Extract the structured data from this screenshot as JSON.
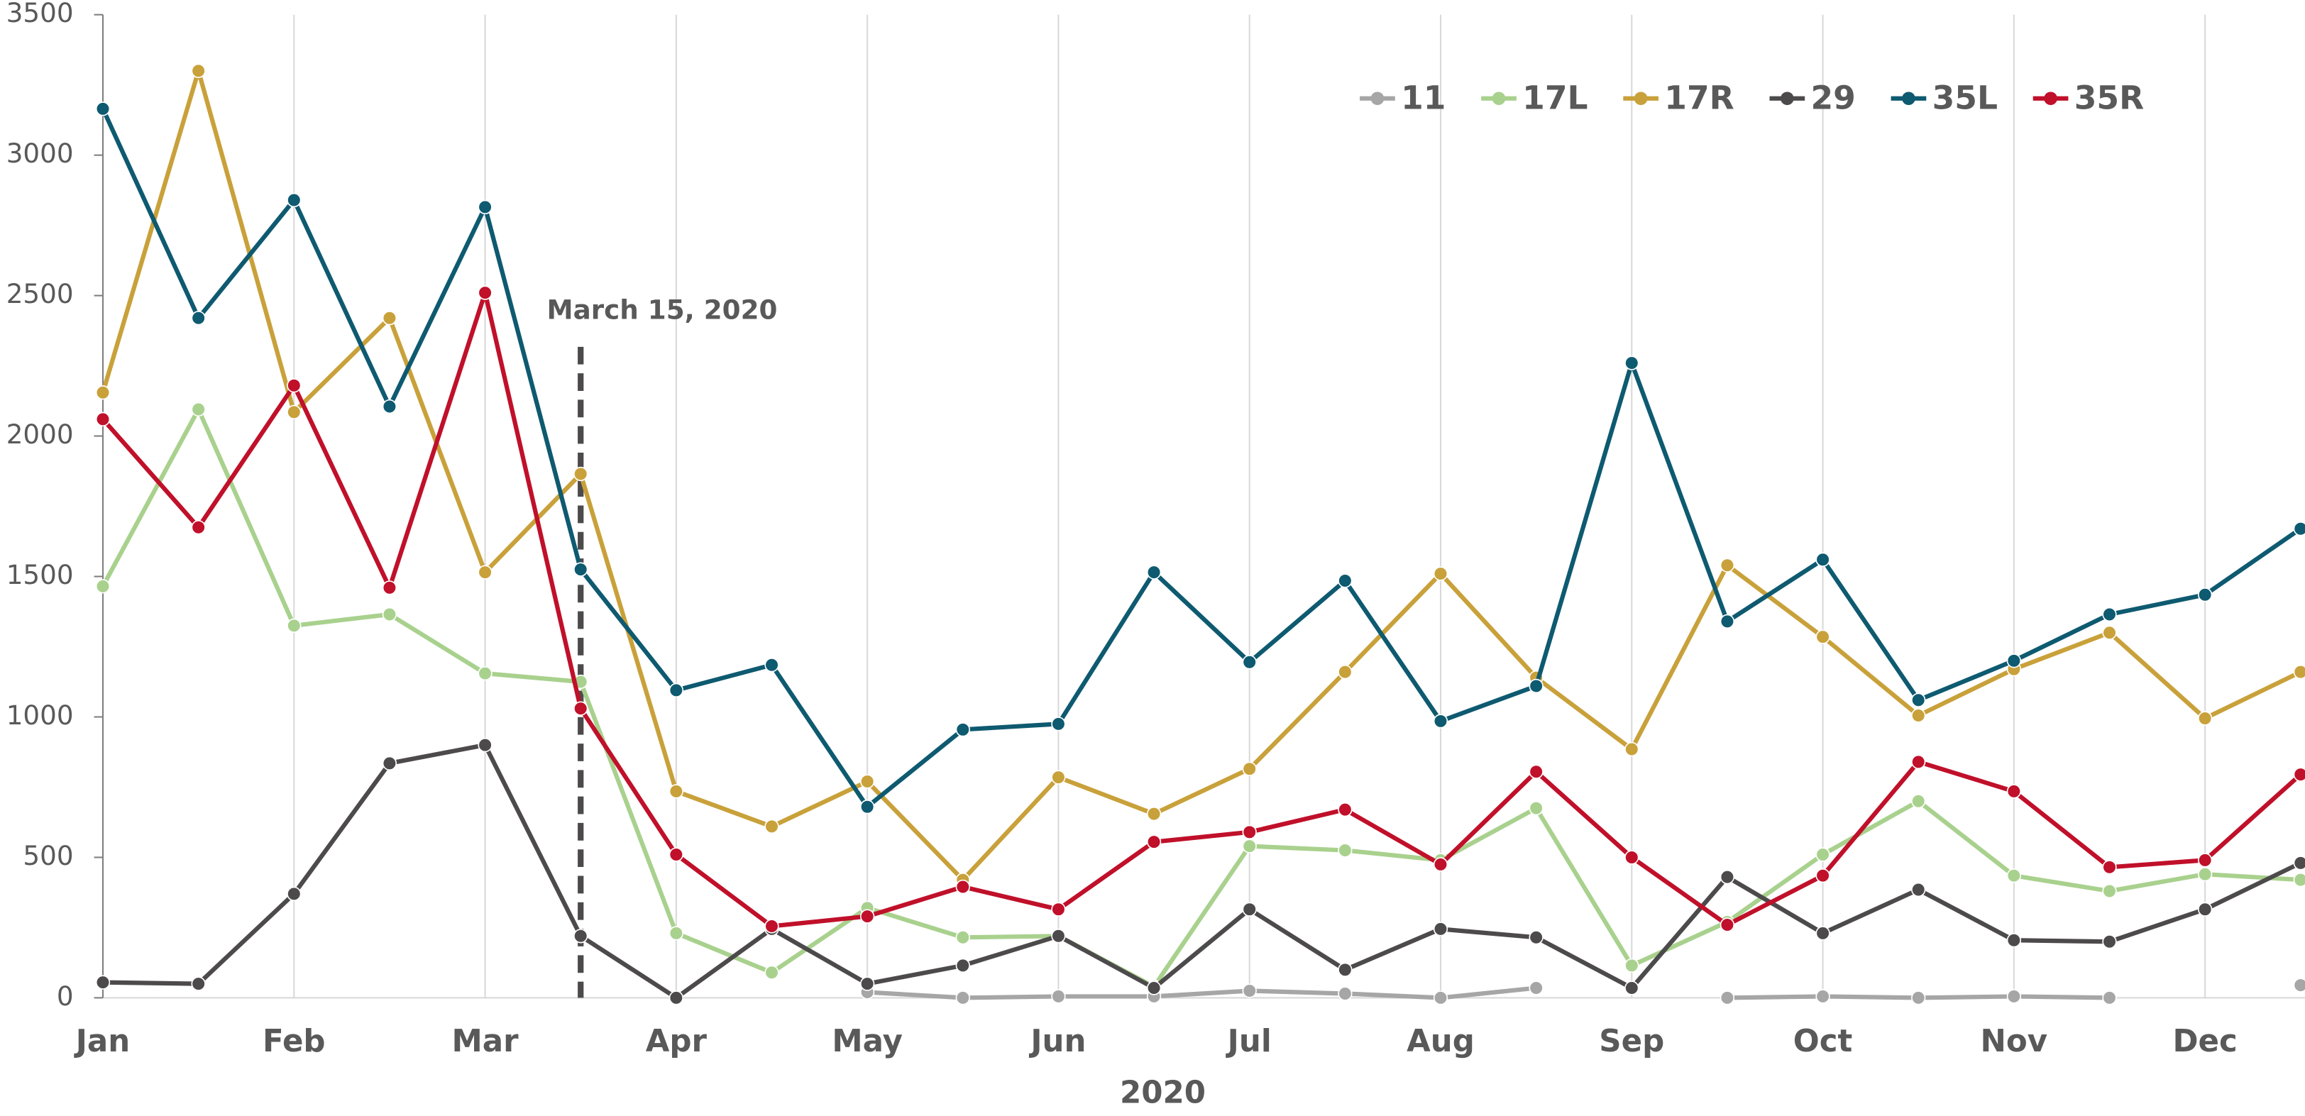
{
  "chart_data": {
    "type": "line",
    "categories": [
      "Jan",
      null,
      "Feb",
      null,
      "Mar",
      null,
      "Apr",
      null,
      "May",
      null,
      "Jun",
      null,
      "Jul",
      null,
      "Aug",
      null,
      "Sep",
      null,
      "Oct",
      null,
      "Nov",
      null,
      "Dec",
      null
    ],
    "x_label": "2020",
    "series": [
      {
        "name": "11",
        "color": "#a6a6a6",
        "values": [
          null,
          null,
          null,
          null,
          null,
          null,
          null,
          null,
          20,
          0,
          5,
          5,
          25,
          15,
          0,
          35,
          null,
          0,
          5,
          0,
          5,
          0,
          null,
          45
        ]
      },
      {
        "name": "17L",
        "color": "#a9d18e",
        "values": [
          1465,
          2095,
          1325,
          1365,
          1155,
          1125,
          230,
          90,
          320,
          215,
          220,
          40,
          540,
          525,
          490,
          675,
          115,
          270,
          510,
          700,
          435,
          380,
          440,
          420
        ]
      },
      {
        "name": "17R",
        "color": "#c9a13a",
        "values": [
          2155,
          3300,
          2085,
          2420,
          1515,
          1865,
          735,
          610,
          770,
          420,
          785,
          655,
          815,
          1160,
          1510,
          1140,
          885,
          1540,
          1285,
          1005,
          1170,
          1300,
          995,
          1160
        ]
      },
      {
        "name": "29",
        "color": "#4d4a4c",
        "values": [
          55,
          50,
          370,
          835,
          900,
          220,
          0,
          245,
          50,
          115,
          220,
          35,
          315,
          100,
          245,
          215,
          35,
          430,
          230,
          385,
          205,
          200,
          315,
          480
        ]
      },
      {
        "name": "35L",
        "color": "#0e5a70",
        "values": [
          3165,
          2420,
          2840,
          2105,
          2815,
          1525,
          1095,
          1185,
          680,
          955,
          975,
          1515,
          1195,
          1485,
          985,
          1110,
          2260,
          1340,
          1560,
          1060,
          1200,
          1365,
          1435,
          1670
        ]
      },
      {
        "name": "35R",
        "color": "#c0102a",
        "values": [
          2060,
          1675,
          2180,
          1460,
          2510,
          1030,
          510,
          255,
          290,
          395,
          315,
          555,
          590,
          670,
          475,
          805,
          500,
          260,
          435,
          840,
          735,
          465,
          490,
          795
        ]
      }
    ],
    "annotation": "March 15, 2020",
    "ylim": [
      0,
      3500
    ],
    "yticks": [
      0,
      500,
      1000,
      1500,
      2000,
      2500,
      3000,
      3500
    ],
    "grid": true,
    "legend": "top-right"
  }
}
